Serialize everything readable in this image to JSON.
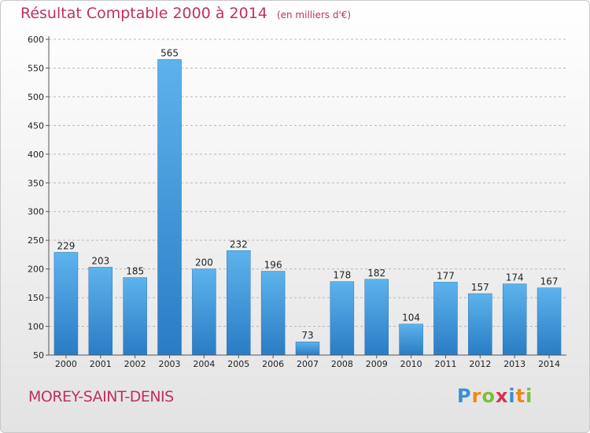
{
  "header": {
    "title": "Résultat Comptable 2000 à 2014",
    "subtitle": "(en milliers d'€)"
  },
  "footer": {
    "commune": "MOREY-SAINT-DENIS",
    "logo_text": "Proxiti"
  },
  "chart_data": {
    "type": "bar",
    "title": "Résultat Comptable 2000 à 2014",
    "subtitle": "(en milliers d'€)",
    "xlabel": "",
    "ylabel": "",
    "categories": [
      "2000",
      "2001",
      "2002",
      "2003",
      "2004",
      "2005",
      "2006",
      "2007",
      "2008",
      "2009",
      "2010",
      "2011",
      "2012",
      "2013",
      "2014"
    ],
    "values": [
      229,
      203,
      185,
      565,
      200,
      232,
      196,
      73,
      178,
      182,
      104,
      177,
      157,
      174,
      167
    ],
    "ylim": [
      50,
      600
    ],
    "yticks": [
      50,
      100,
      150,
      200,
      250,
      300,
      350,
      400,
      450,
      500,
      550,
      600
    ],
    "grid": "horizontal dashed",
    "bar_color": "#3d9ae0",
    "data_labels": true
  }
}
